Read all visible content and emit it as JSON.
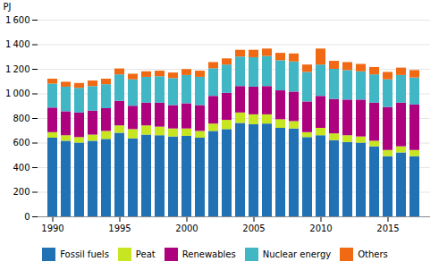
{
  "chart_data": {
    "type": "bar",
    "stacked": true,
    "grid": true,
    "legend": "bottom",
    "y_label": "PJ",
    "categories": [
      1990,
      1991,
      1992,
      1993,
      1994,
      1995,
      1996,
      1997,
      1998,
      1999,
      2000,
      2001,
      2002,
      2003,
      2004,
      2005,
      2006,
      2007,
      2008,
      2009,
      2010,
      2011,
      2012,
      2013,
      2014,
      2015,
      2016,
      2017
    ],
    "xticks": [
      1990,
      1995,
      2000,
      2005,
      2010,
      2015
    ],
    "ylim": [
      0,
      1600
    ],
    "yticks": [
      0,
      200,
      400,
      600,
      800,
      {
        "value": 1000,
        "label": "1 000"
      },
      {
        "value": 1200,
        "label": "1 200"
      },
      {
        "value": 1400,
        "label": "1 400"
      },
      {
        "value": 1600,
        "label": "1 600"
      }
    ],
    "series": [
      {
        "name": "Fossil fuels",
        "color": "#2171b5",
        "values": [
          640,
          615,
          600,
          615,
          630,
          680,
          635,
          665,
          660,
          650,
          655,
          640,
          695,
          710,
          760,
          750,
          755,
          720,
          715,
          645,
          660,
          620,
          605,
          600,
          570,
          490,
          520,
          490
        ]
      },
      {
        "name": "Peat",
        "color": "#c7e520",
        "values": [
          45,
          45,
          45,
          50,
          65,
          60,
          75,
          75,
          70,
          65,
          60,
          55,
          60,
          75,
          85,
          80,
          75,
          70,
          60,
          40,
          60,
          55,
          55,
          50,
          45,
          50,
          50,
          50
        ]
      },
      {
        "name": "Renewables",
        "color": "#ae017e",
        "values": [
          200,
          195,
          200,
          195,
          185,
          200,
          190,
          185,
          195,
          190,
          205,
          210,
          225,
          220,
          215,
          225,
          230,
          235,
          240,
          250,
          260,
          280,
          290,
          300,
          310,
          350,
          355,
          370
        ]
      },
      {
        "name": "Nuclear energy",
        "color": "#41b6c4",
        "values": [
          195,
          200,
          200,
          200,
          195,
          215,
          215,
          210,
          215,
          220,
          230,
          230,
          225,
          230,
          240,
          240,
          245,
          245,
          245,
          240,
          255,
          245,
          240,
          230,
          230,
          225,
          225,
          220
        ]
      },
      {
        "name": "Others",
        "color": "#f16913",
        "values": [
          40,
          40,
          40,
          45,
          45,
          48,
          45,
          45,
          45,
          45,
          48,
          50,
          50,
          50,
          55,
          60,
          60,
          60,
          65,
          60,
          130,
          65,
          65,
          60,
          60,
          60,
          60,
          60
        ]
      }
    ]
  }
}
